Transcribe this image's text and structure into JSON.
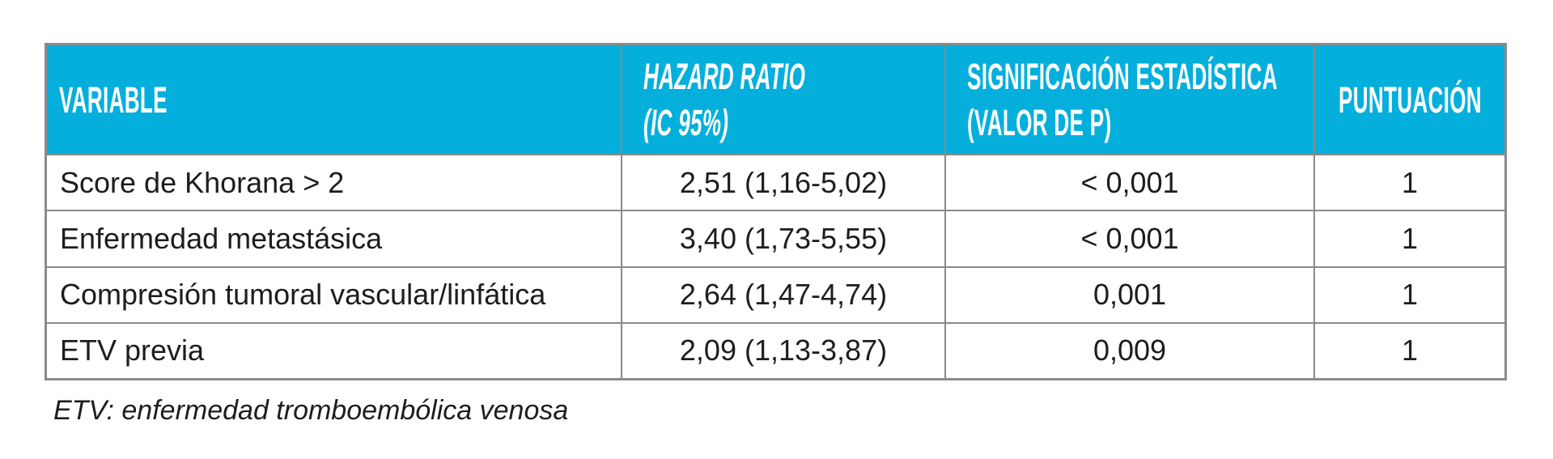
{
  "colors": {
    "header_bg": "#04afdc",
    "header_text": "#ffffff",
    "border": "#8a8a8a",
    "body_text": "#1d1d1b",
    "page_bg": "#ffffff"
  },
  "table": {
    "headers": {
      "variable": {
        "line1": "VARIABLE"
      },
      "hazard_ratio": {
        "line1": "HAZARD RATIO",
        "line2": "(IC 95%)"
      },
      "significance": {
        "line1": "SIGNIFICACIÓN ESTADÍSTICA",
        "line2": "(VALOR DE P)"
      },
      "score": {
        "line1": "PUNTUACIÓN"
      }
    },
    "rows": [
      {
        "variable": "Score de Khorana > 2",
        "hazard_ratio": "2,51 (1,16-5,02)",
        "p_value": "< 0,001",
        "score": "1"
      },
      {
        "variable": "Enfermedad metastásica",
        "hazard_ratio": "3,40 (1,73-5,55)",
        "p_value": "< 0,001",
        "score": "1"
      },
      {
        "variable": "Compresión tumoral vascular/linfática",
        "hazard_ratio": "2,64 (1,47-4,74)",
        "p_value": "0,001",
        "score": "1"
      },
      {
        "variable": "ETV previa",
        "hazard_ratio": "2,09 (1,13-3,87)",
        "p_value": "0,009",
        "score": "1"
      }
    ]
  },
  "footnote": "ETV: enfermedad tromboembólica venosa",
  "chart_data": {
    "type": "table",
    "title": "",
    "columns": [
      "VARIABLE",
      "HAZARD RATIO (IC 95%)",
      "SIGNIFICACIÓN ESTADÍSTICA (VALOR DE P)",
      "PUNTUACIÓN"
    ],
    "rows": [
      [
        "Score de Khorana > 2",
        "2,51 (1,16-5,02)",
        "< 0,001",
        "1"
      ],
      [
        "Enfermedad metastásica",
        "3,40 (1,73-5,55)",
        "< 0,001",
        "1"
      ],
      [
        "Compresión tumoral vascular/linfática",
        "2,64 (1,47-4,74)",
        "0,001",
        "1"
      ],
      [
        "ETV previa",
        "2,09 (1,13-3,87)",
        "0,009",
        "1"
      ]
    ],
    "footnote": "ETV: enfermedad tromboembólica venosa"
  }
}
